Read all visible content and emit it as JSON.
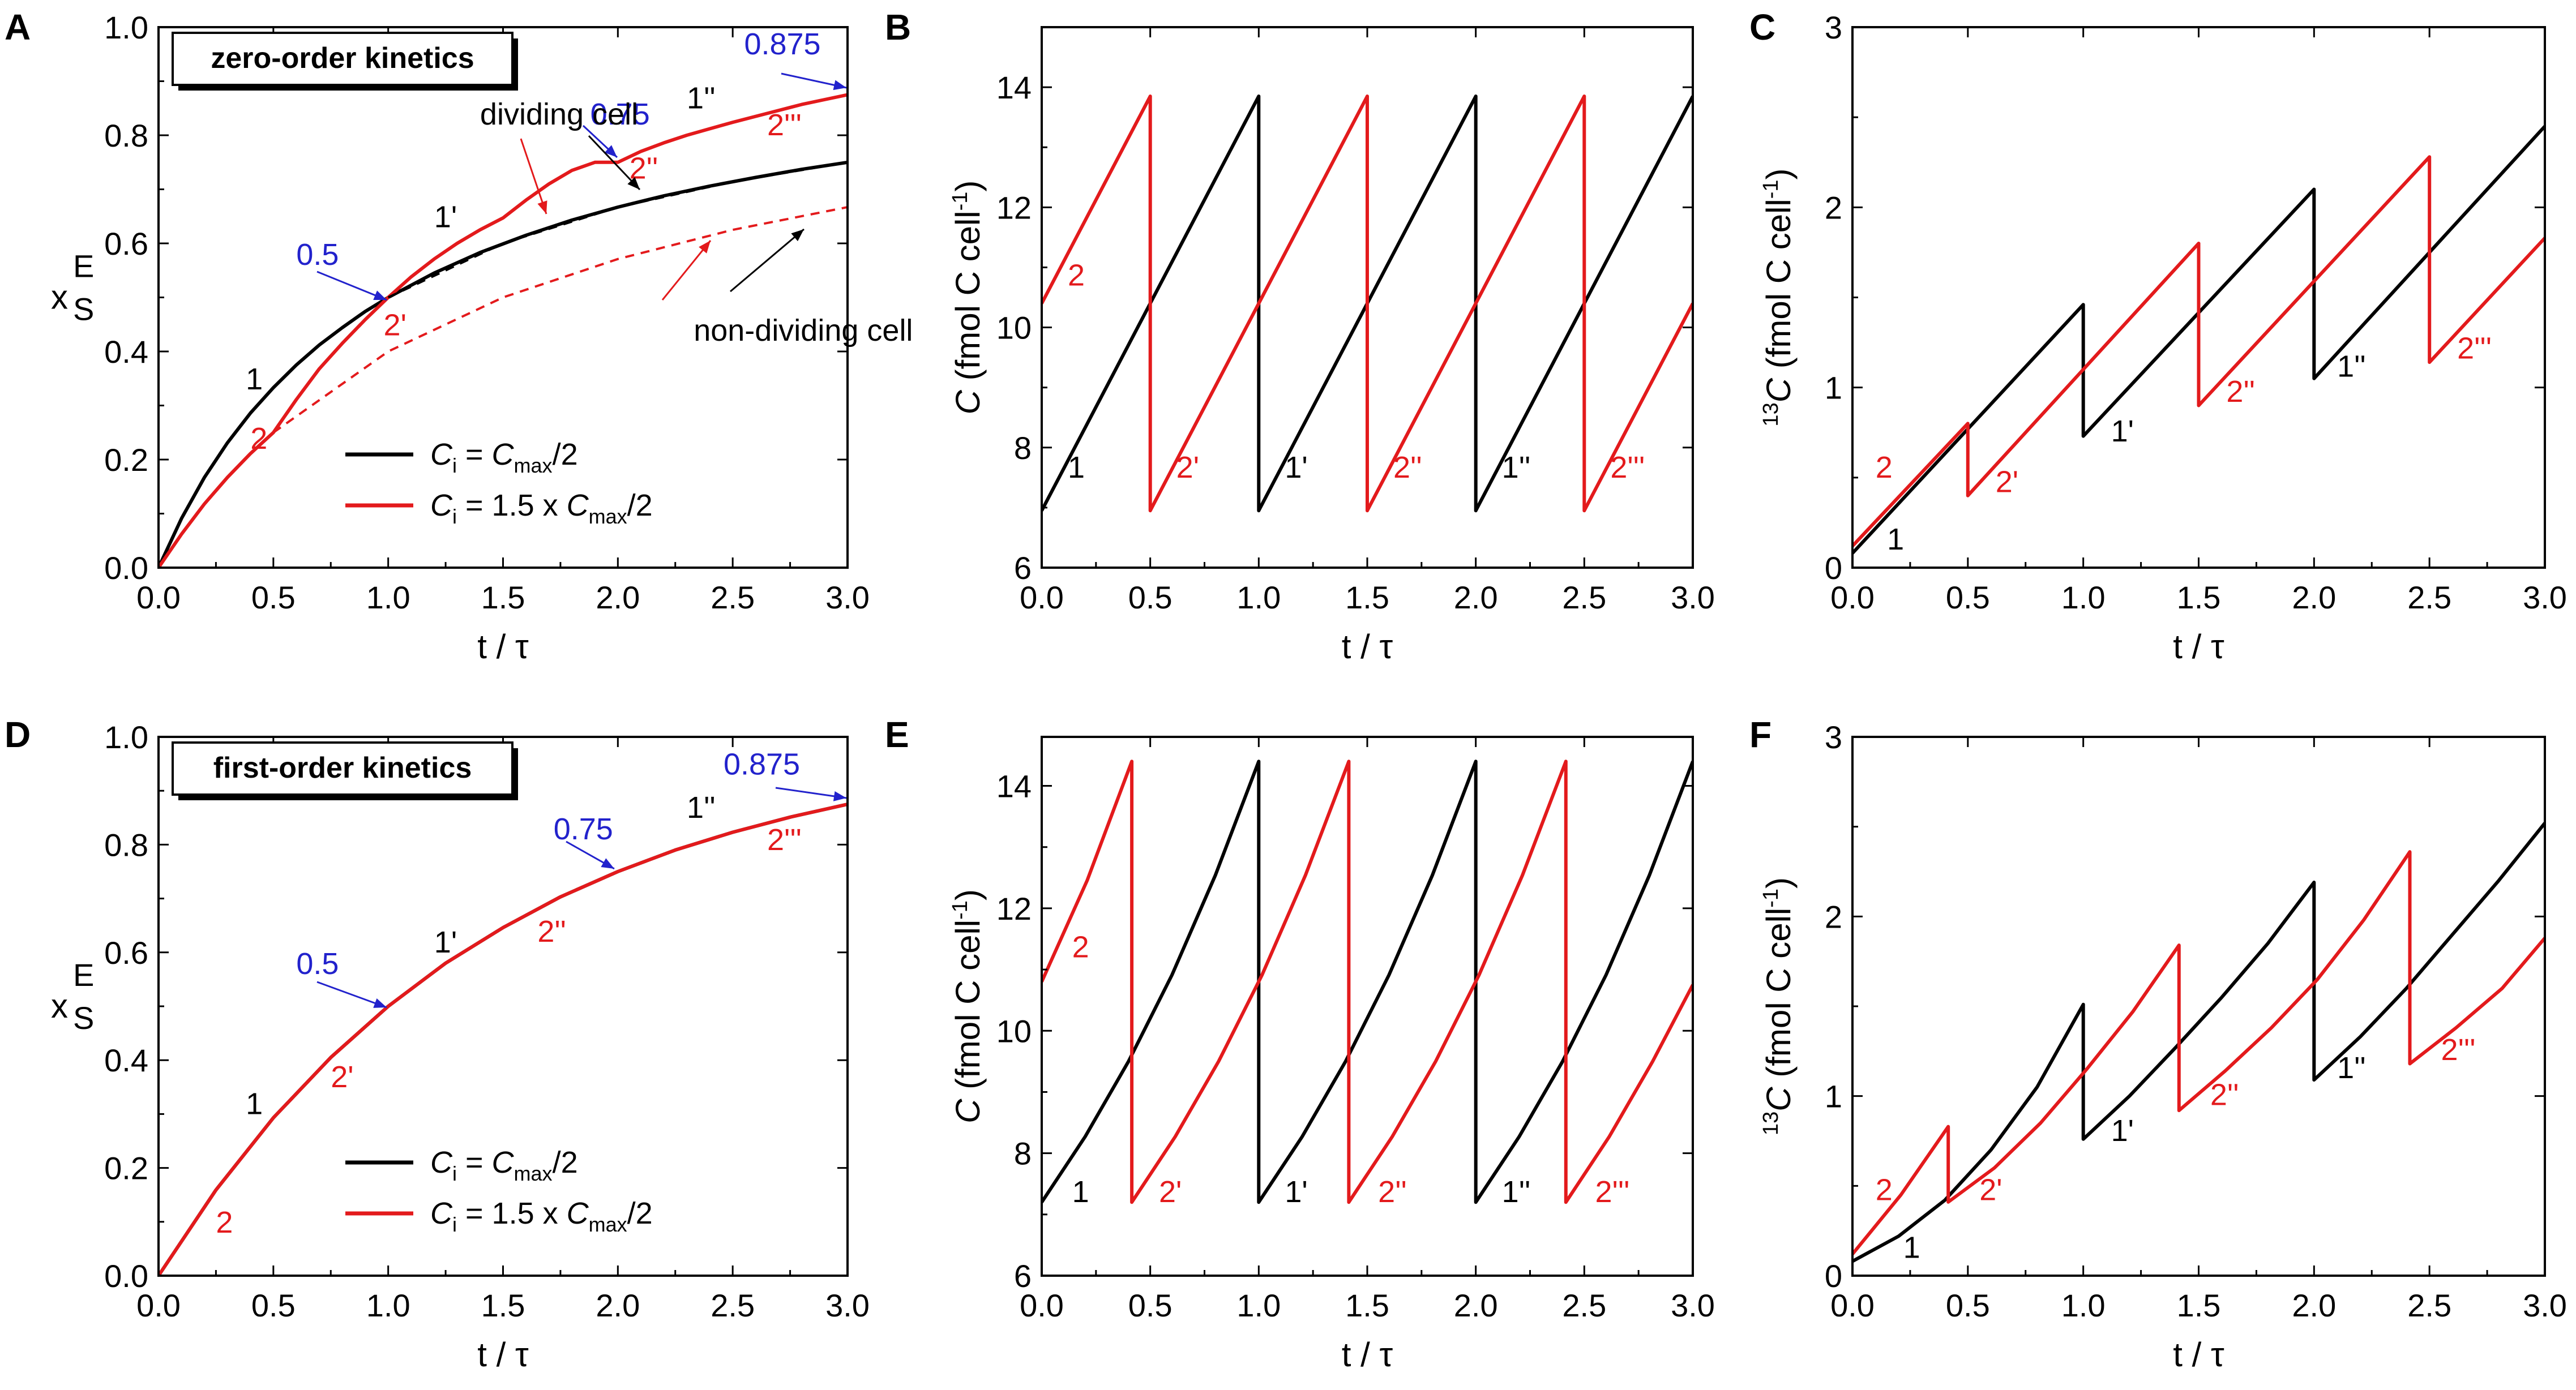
{
  "figure": "kinetics panels",
  "chart_data": [
    {
      "panel": "A",
      "type": "line",
      "title": "zero-order kinetics",
      "xlabel": "t / τ",
      "ylabel_main": "x",
      "ylabel_sup": "E",
      "ylabel_sub": "S",
      "xlim": [
        0,
        3
      ],
      "ylim": [
        0,
        1
      ],
      "xticks": [
        "0.0",
        "0.5",
        "1.0",
        "1.5",
        "2.0",
        "2.5",
        "3.0"
      ],
      "yticks": [
        "0.0",
        "0.2",
        "0.4",
        "0.6",
        "0.8",
        "1.0"
      ],
      "series": [
        {
          "name": "Ci = Cmax/2 (dividing cell)",
          "color": "#000000",
          "dash": false,
          "x": [
            0,
            0.1,
            0.2,
            0.3,
            0.4,
            0.5,
            0.6,
            0.7,
            0.8,
            0.9,
            1.0,
            1.2,
            1.4,
            1.6,
            1.8,
            2.0,
            2.2,
            2.4,
            2.6,
            2.8,
            3.0
          ],
          "y": [
            0,
            0.091,
            0.167,
            0.231,
            0.286,
            0.333,
            0.375,
            0.412,
            0.444,
            0.474,
            0.5,
            0.545,
            0.583,
            0.615,
            0.643,
            0.667,
            0.688,
            0.706,
            0.722,
            0.737,
            0.75
          ]
        },
        {
          "name": "Ci = 1.5 x Cmax/2 (dividing cell)",
          "color": "#e31a1c",
          "dash": false,
          "x": [
            0,
            0.1,
            0.2,
            0.3,
            0.4,
            0.5,
            0.6,
            0.7,
            0.8,
            0.9,
            1.0,
            1.1,
            1.2,
            1.3,
            1.4,
            1.5,
            1.6,
            1.7,
            1.8,
            1.9,
            2.0,
            2.1,
            2.2,
            2.3,
            2.4,
            2.5,
            2.6,
            2.7,
            2.8,
            2.9,
            3.0
          ],
          "y": [
            0,
            0.062,
            0.118,
            0.167,
            0.211,
            0.25,
            0.311,
            0.368,
            0.415,
            0.459,
            0.5,
            0.538,
            0.571,
            0.6,
            0.625,
            0.647,
            0.68,
            0.71,
            0.735,
            0.75,
            0.75,
            0.77,
            0.786,
            0.8,
            0.812,
            0.824,
            0.835,
            0.846,
            0.857,
            0.866,
            0.875
          ]
        },
        {
          "name": "non-dividing Ci = Cmax/2",
          "color": "#000000",
          "dash": true,
          "x": [
            1.0,
            1.5,
            2.0,
            2.5,
            3.0
          ],
          "y": [
            0.5,
            0.6,
            0.667,
            0.714,
            0.75
          ]
        },
        {
          "name": "non-dividing Ci = 1.5 x Cmax/2",
          "color": "#e31a1c",
          "dash": true,
          "x": [
            0.5,
            1.0,
            1.5,
            2.0,
            2.5,
            3.0
          ],
          "y": [
            0.25,
            0.4,
            0.5,
            0.571,
            0.625,
            0.667
          ]
        }
      ],
      "labels": [
        {
          "text": "1",
          "color": "#000000",
          "x": 0.38,
          "y": 0.33
        },
        {
          "text": "2",
          "color": "#e31a1c",
          "x": 0.4,
          "y": 0.22
        },
        {
          "text": "1'",
          "color": "#000000",
          "x": 1.2,
          "y": 0.63
        },
        {
          "text": "2'",
          "color": "#e31a1c",
          "x": 0.98,
          "y": 0.43
        },
        {
          "text": "1''",
          "color": "#000000",
          "x": 2.3,
          "y": 0.85
        },
        {
          "text": "2''",
          "color": "#e31a1c",
          "x": 2.05,
          "y": 0.72
        },
        {
          "text": "2'''",
          "color": "#e31a1c",
          "x": 2.65,
          "y": 0.8
        }
      ],
      "annotations": [
        {
          "text": "0.5",
          "color": "#2222cc",
          "x": 0.6,
          "y": 0.56
        },
        {
          "text": "0.75",
          "color": "#2222cc",
          "x": 1.88,
          "y": 0.82
        },
        {
          "text": "0.875",
          "color": "#2222cc",
          "x": 2.55,
          "y": 0.95
        },
        {
          "text": "dividing cell",
          "color": "#000000",
          "x": 1.4,
          "y": 0.82
        },
        {
          "text": "non-dividing cell",
          "color": "#000000",
          "x": 2.33,
          "y": 0.42
        }
      ],
      "legend": {
        "position": "bottom-right",
        "entries": [
          {
            "color": "#000000",
            "main": "C",
            "sub": "i",
            "rest": " = ",
            "main2": "C",
            "sub2": "max",
            "tail": "/2"
          },
          {
            "color": "#e31a1c",
            "main": "C",
            "sub": "i",
            "rest": " = 1.5 x ",
            "main2": "C",
            "sub2": "max",
            "tail": "/2"
          }
        ]
      }
    },
    {
      "panel": "B",
      "type": "line",
      "xlabel": "t / τ",
      "ylabel_main": "C",
      "ylabel_rest": "  (fmol C cell",
      "ylabel_sup": "-1",
      "ylabel_end": ")",
      "xlim": [
        0,
        3
      ],
      "ylim": [
        6,
        15
      ],
      "xticks": [
        "0.0",
        "0.5",
        "1.0",
        "1.5",
        "2.0",
        "2.5",
        "3.0"
      ],
      "yticks": [
        "6",
        "8",
        "10",
        "12",
        "14"
      ],
      "series": [
        {
          "name": "Ci = Cmax/2",
          "color": "#000000",
          "x": [
            0,
            1,
            1,
            2,
            2,
            3
          ],
          "y": [
            6.95,
            13.85,
            6.95,
            13.85,
            6.95,
            13.85
          ]
        },
        {
          "name": "Ci = 1.5 x Cmax/2",
          "color": "#e31a1c",
          "x": [
            0,
            0.5,
            0.5,
            1.5,
            1.5,
            2.5,
            2.5,
            3.0
          ],
          "y": [
            10.4,
            13.85,
            6.95,
            13.85,
            6.95,
            13.85,
            6.95,
            10.4
          ]
        }
      ],
      "labels": [
        {
          "text": "1",
          "color": "#000000",
          "x": 0.12,
          "y": 7.5
        },
        {
          "text": "2",
          "color": "#e31a1c",
          "x": 0.12,
          "y": 10.7
        },
        {
          "text": "1'",
          "color": "#000000",
          "x": 1.12,
          "y": 7.5
        },
        {
          "text": "2'",
          "color": "#e31a1c",
          "x": 0.62,
          "y": 7.5
        },
        {
          "text": "1''",
          "color": "#000000",
          "x": 2.12,
          "y": 7.5
        },
        {
          "text": "2''",
          "color": "#e31a1c",
          "x": 1.62,
          "y": 7.5
        },
        {
          "text": "2'''",
          "color": "#e31a1c",
          "x": 2.62,
          "y": 7.5
        }
      ]
    },
    {
      "panel": "C",
      "type": "line",
      "xlabel": "t / τ",
      "ylabel_sup": "13",
      "ylabel_main": "C",
      "ylabel_rest": "  (fmol C cell",
      "ylabel_sup2": "-1",
      "ylabel_end": ")",
      "xlim": [
        0,
        3
      ],
      "ylim": [
        0,
        3
      ],
      "xticks": [
        "0.0",
        "0.5",
        "1.0",
        "1.5",
        "2.0",
        "2.5",
        "3.0"
      ],
      "yticks": [
        "0",
        "1",
        "2",
        "3"
      ],
      "series": [
        {
          "name": "Ci = Cmax/2",
          "color": "#000000",
          "x": [
            0,
            1,
            1,
            2,
            2,
            3
          ],
          "y": [
            0.08,
            1.46,
            0.73,
            2.1,
            1.05,
            2.45
          ]
        },
        {
          "name": "Ci = 1.5 x Cmax/2",
          "color": "#e31a1c",
          "x": [
            0,
            0.5,
            0.5,
            1.5,
            1.5,
            2.5,
            2.5,
            3.0
          ],
          "y": [
            0.12,
            0.8,
            0.4,
            1.8,
            0.9,
            2.28,
            1.14,
            1.83
          ]
        }
      ],
      "labels": [
        {
          "text": "1",
          "color": "#000000",
          "x": 0.15,
          "y": 0.1
        },
        {
          "text": "2",
          "color": "#e31a1c",
          "x": 0.1,
          "y": 0.5
        },
        {
          "text": "1'",
          "color": "#000000",
          "x": 1.12,
          "y": 0.7
        },
        {
          "text": "2'",
          "color": "#e31a1c",
          "x": 0.62,
          "y": 0.42
        },
        {
          "text": "1''",
          "color": "#000000",
          "x": 2.1,
          "y": 1.06
        },
        {
          "text": "2''",
          "color": "#e31a1c",
          "x": 1.62,
          "y": 0.92
        },
        {
          "text": "2'''",
          "color": "#e31a1c",
          "x": 2.62,
          "y": 1.16
        }
      ]
    },
    {
      "panel": "D",
      "type": "line",
      "title": "first-order kinetics",
      "xlabel": "t / τ",
      "ylabel_main": "x",
      "ylabel_sup": "E",
      "ylabel_sub": "S",
      "xlim": [
        0,
        3
      ],
      "ylim": [
        0,
        1
      ],
      "xticks": [
        "0.0",
        "0.5",
        "1.0",
        "1.5",
        "2.0",
        "2.5",
        "3.0"
      ],
      "yticks": [
        "0.0",
        "0.2",
        "0.4",
        "0.6",
        "0.8",
        "1.0"
      ],
      "series": [
        {
          "name": "Ci = Cmax/2",
          "color": "#000000",
          "x": [
            0,
            0.25,
            0.5,
            0.75,
            1.0,
            1.25,
            1.5,
            1.75,
            2.0,
            2.25,
            2.5,
            2.75,
            3.0
          ],
          "y": [
            0,
            0.159,
            0.293,
            0.405,
            0.5,
            0.58,
            0.646,
            0.703,
            0.75,
            0.79,
            0.823,
            0.851,
            0.875
          ]
        },
        {
          "name": "Ci = 1.5 x Cmax/2",
          "color": "#e31a1c",
          "x": [
            0,
            0.25,
            0.5,
            0.75,
            1.0,
            1.25,
            1.5,
            1.75,
            2.0,
            2.25,
            2.5,
            2.75,
            3.0
          ],
          "y": [
            0,
            0.159,
            0.293,
            0.405,
            0.5,
            0.58,
            0.646,
            0.703,
            0.75,
            0.79,
            0.823,
            0.851,
            0.875
          ]
        }
      ],
      "labels": [
        {
          "text": "1",
          "color": "#000000",
          "x": 0.38,
          "y": 0.3
        },
        {
          "text": "2",
          "color": "#e31a1c",
          "x": 0.25,
          "y": 0.08
        },
        {
          "text": "1'",
          "color": "#000000",
          "x": 1.2,
          "y": 0.6
        },
        {
          "text": "2'",
          "color": "#e31a1c",
          "x": 0.75,
          "y": 0.35
        },
        {
          "text": "1''",
          "color": "#000000",
          "x": 2.3,
          "y": 0.85
        },
        {
          "text": "2''",
          "color": "#e31a1c",
          "x": 1.65,
          "y": 0.62
        },
        {
          "text": "2'''",
          "color": "#e31a1c",
          "x": 2.65,
          "y": 0.79
        }
      ],
      "annotations": [
        {
          "text": "0.5",
          "color": "#2222cc",
          "x": 0.6,
          "y": 0.56
        },
        {
          "text": "0.75",
          "color": "#2222cc",
          "x": 1.72,
          "y": 0.81
        },
        {
          "text": "0.875",
          "color": "#2222cc",
          "x": 2.46,
          "y": 0.93
        }
      ],
      "legend": {
        "position": "bottom-right",
        "entries": [
          {
            "color": "#000000",
            "main": "C",
            "sub": "i",
            "rest": " = ",
            "main2": "C",
            "sub2": "max",
            "tail": "/2"
          },
          {
            "color": "#e31a1c",
            "main": "C",
            "sub": "i",
            "rest": " = 1.5 x ",
            "main2": "C",
            "sub2": "max",
            "tail": "/2"
          }
        ]
      }
    },
    {
      "panel": "E",
      "type": "line",
      "xlabel": "t / τ",
      "ylabel_main": "C",
      "ylabel_rest": "  (fmol C cell",
      "ylabel_sup": "-1",
      "ylabel_end": ")",
      "xlim": [
        0,
        3
      ],
      "ylim": [
        6,
        14.8
      ],
      "xticks": [
        "0.0",
        "0.5",
        "1.0",
        "1.5",
        "2.0",
        "2.5",
        "3.0"
      ],
      "yticks": [
        "6",
        "8",
        "10",
        "12",
        "14"
      ],
      "series": [
        {
          "name": "Ci = Cmax/2",
          "color": "#000000",
          "x": [
            0,
            0.2,
            0.4,
            0.6,
            0.8,
            1.0,
            1.0,
            1.2,
            1.4,
            1.6,
            1.8,
            2.0,
            2.0,
            2.2,
            2.4,
            2.6,
            2.8,
            3.0
          ],
          "y": [
            7.2,
            8.27,
            9.5,
            10.91,
            12.54,
            14.4,
            7.2,
            8.27,
            9.5,
            10.91,
            12.54,
            14.4,
            7.2,
            8.27,
            9.5,
            10.91,
            12.54,
            14.4
          ]
        },
        {
          "name": "Ci = 1.5 x Cmax/2",
          "color": "#e31a1c",
          "x": [
            0,
            0.21,
            0.415,
            0.415,
            0.615,
            0.815,
            1.015,
            1.215,
            1.415,
            1.415,
            1.615,
            1.815,
            2.015,
            2.215,
            2.415,
            2.415,
            2.615,
            2.815,
            3.0
          ],
          "y": [
            10.8,
            12.46,
            14.4,
            7.2,
            8.27,
            9.5,
            10.91,
            12.54,
            14.4,
            7.2,
            8.27,
            9.5,
            10.91,
            12.54,
            14.4,
            7.2,
            8.27,
            9.5,
            10.75
          ]
        }
      ],
      "labels": [
        {
          "text": "1",
          "color": "#000000",
          "x": 0.14,
          "y": 7.2
        },
        {
          "text": "2",
          "color": "#e31a1c",
          "x": 0.14,
          "y": 11.2
        },
        {
          "text": "1'",
          "color": "#000000",
          "x": 1.12,
          "y": 7.2
        },
        {
          "text": "2'",
          "color": "#e31a1c",
          "x": 0.54,
          "y": 7.2
        },
        {
          "text": "1''",
          "color": "#000000",
          "x": 2.12,
          "y": 7.2
        },
        {
          "text": "2''",
          "color": "#e31a1c",
          "x": 1.55,
          "y": 7.2
        },
        {
          "text": "2'''",
          "color": "#e31a1c",
          "x": 2.55,
          "y": 7.2
        }
      ]
    },
    {
      "panel": "F",
      "type": "line",
      "xlabel": "t / τ",
      "ylabel_sup": "13",
      "ylabel_main": "C",
      "ylabel_rest": "  (fmol C cell",
      "ylabel_sup2": "-1",
      "ylabel_end": ")",
      "xlim": [
        0,
        3
      ],
      "ylim": [
        0,
        3
      ],
      "xticks": [
        "0.0",
        "0.5",
        "1.0",
        "1.5",
        "2.0",
        "2.5",
        "3.0"
      ],
      "yticks": [
        "0",
        "1",
        "2",
        "3"
      ],
      "series": [
        {
          "name": "Ci = Cmax/2",
          "color": "#000000",
          "x": [
            0,
            0.2,
            0.4,
            0.6,
            0.8,
            1.0,
            1.0,
            1.2,
            1.4,
            1.6,
            1.8,
            2.0,
            2.0,
            2.2,
            2.4,
            2.6,
            2.8,
            3.0
          ],
          "y": [
            0.08,
            0.22,
            0.42,
            0.7,
            1.05,
            1.51,
            0.76,
            1.0,
            1.27,
            1.55,
            1.85,
            2.19,
            1.09,
            1.33,
            1.6,
            1.9,
            2.2,
            2.52
          ]
        },
        {
          "name": "Ci = 1.5 x Cmax/2",
          "color": "#e31a1c",
          "x": [
            0,
            0.21,
            0.415,
            0.415,
            0.615,
            0.815,
            1.015,
            1.215,
            1.415,
            1.415,
            1.615,
            1.815,
            2.015,
            2.215,
            2.415,
            2.415,
            2.615,
            2.815,
            3.0
          ],
          "y": [
            0.12,
            0.45,
            0.83,
            0.41,
            0.6,
            0.85,
            1.15,
            1.47,
            1.84,
            0.92,
            1.14,
            1.38,
            1.65,
            1.98,
            2.36,
            1.18,
            1.38,
            1.6,
            1.88
          ]
        }
      ],
      "labels": [
        {
          "text": "1",
          "color": "#000000",
          "x": 0.22,
          "y": 0.1
        },
        {
          "text": "2",
          "color": "#e31a1c",
          "x": 0.1,
          "y": 0.42
        },
        {
          "text": "1'",
          "color": "#000000",
          "x": 1.12,
          "y": 0.75
        },
        {
          "text": "2'",
          "color": "#e31a1c",
          "x": 0.55,
          "y": 0.42
        },
        {
          "text": "1''",
          "color": "#000000",
          "x": 2.1,
          "y": 1.1
        },
        {
          "text": "2''",
          "color": "#e31a1c",
          "x": 1.55,
          "y": 0.95
        },
        {
          "text": "2'''",
          "color": "#e31a1c",
          "x": 2.55,
          "y": 1.2
        }
      ]
    }
  ]
}
